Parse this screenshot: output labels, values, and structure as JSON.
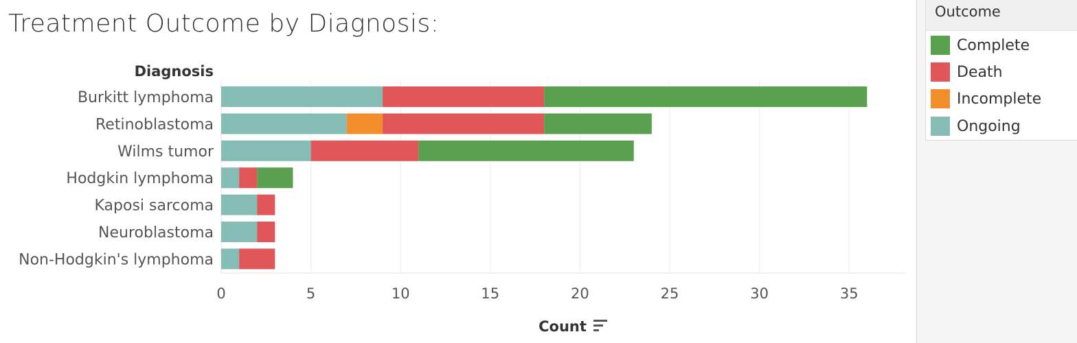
{
  "title": "Treatment Outcome by Diagnosis:",
  "legend": {
    "title": "Outcome",
    "items": [
      {
        "label": "Complete",
        "color": "#59a14f"
      },
      {
        "label": "Death",
        "color": "#e15759"
      },
      {
        "label": "Incomplete",
        "color": "#f28e2b"
      },
      {
        "label": "Ongoing",
        "color": "#86bcb6"
      }
    ]
  },
  "chart_data": {
    "type": "bar",
    "orientation": "horizontal",
    "stacked": true,
    "ylabel": "Diagnosis",
    "xlabel": "Count",
    "xlim": [
      0,
      38
    ],
    "xticks": [
      0,
      5,
      10,
      15,
      20,
      25,
      30,
      35
    ],
    "grid": true,
    "legend_position": "right",
    "categories": [
      "Burkitt lymphoma",
      "Retinoblastoma",
      "Wilms tumor",
      "Hodgkin lymphoma",
      "Kaposi sarcoma",
      "Neuroblastoma",
      "Non-Hodgkin's lymphoma"
    ],
    "series": [
      {
        "name": "Ongoing",
        "color": "#86bcb6",
        "values": [
          9,
          7,
          5,
          1,
          2,
          2,
          1
        ]
      },
      {
        "name": "Incomplete",
        "color": "#f28e2b",
        "values": [
          0,
          2,
          0,
          0,
          0,
          0,
          0
        ]
      },
      {
        "name": "Death",
        "color": "#e15759",
        "values": [
          9,
          9,
          6,
          1,
          1,
          1,
          2
        ]
      },
      {
        "name": "Complete",
        "color": "#59a14f",
        "values": [
          18,
          6,
          12,
          2,
          0,
          0,
          0
        ]
      }
    ]
  }
}
